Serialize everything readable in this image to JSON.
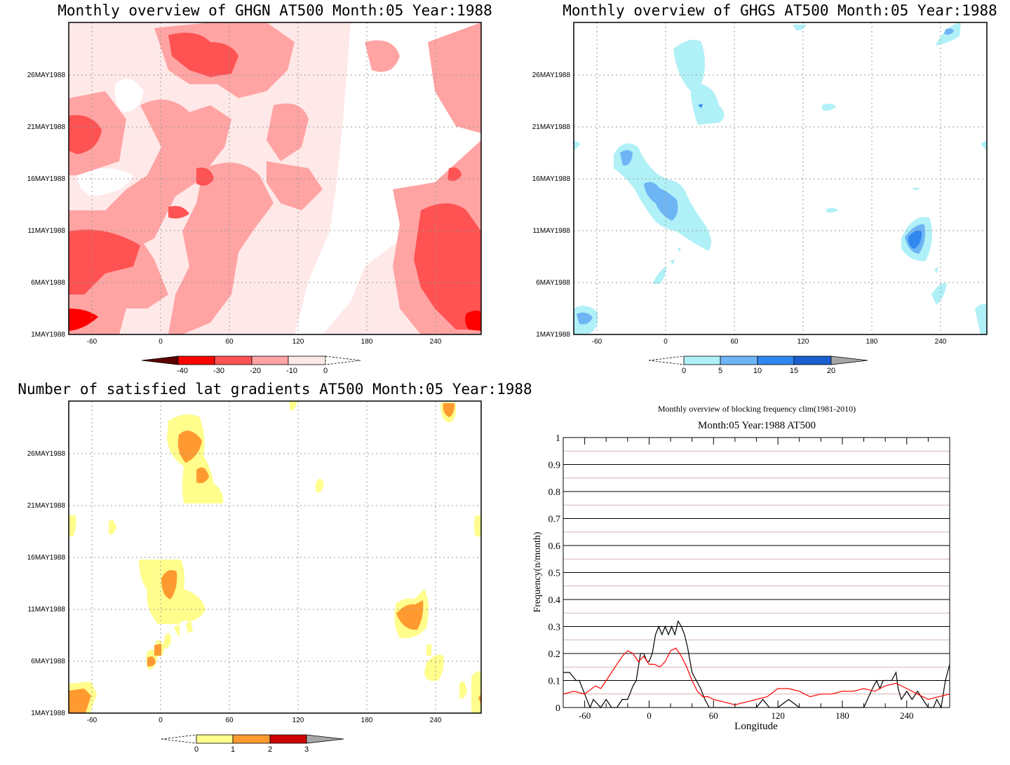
{
  "panels": {
    "ghgn": {
      "title": "Monthly overview of GHGN AT500 Month:05 Year:1988",
      "x_ticks": [
        "-60",
        "0",
        "60",
        "120",
        "180",
        "240"
      ],
      "y_ticks": [
        "1MAY1988",
        "6MAY1988",
        "11MAY1988",
        "16MAY1988",
        "21MAY1988",
        "26MAY1988"
      ],
      "colorbar_labels": [
        "-40",
        "-30",
        "-20",
        "-10",
        "0"
      ],
      "colors": [
        "#5c0000",
        "#ff0000",
        "#ff5252",
        "#ffa3a3",
        "#ffe8e8"
      ]
    },
    "ghgs": {
      "title": "Monthly overview of GHGS AT500 Month:05 Year:1988",
      "x_ticks": [
        "-60",
        "0",
        "60",
        "120",
        "180",
        "240"
      ],
      "y_ticks": [
        "1MAY1988",
        "6MAY1988",
        "11MAY1988",
        "16MAY1988",
        "21MAY1988",
        "26MAY1988"
      ],
      "colorbar_labels": [
        "0",
        "5",
        "10",
        "15",
        "20"
      ],
      "colors": [
        "#b0f0f7",
        "#6db5f5",
        "#2f87f0",
        "#1a5fd0",
        "#a6a6a6"
      ]
    },
    "satisfied": {
      "title": "Number of satisfied lat gradients AT500 Month:05 Year:1988",
      "x_ticks": [
        "-60",
        "0",
        "60",
        "120",
        "180",
        "240"
      ],
      "y_ticks": [
        "1MAY1988",
        "6MAY1988",
        "11MAY1988",
        "16MAY1988",
        "21MAY1988",
        "26MAY1988"
      ],
      "colorbar_labels": [
        "0",
        "1",
        "2",
        "3"
      ],
      "colors": [
        "#fffd8c",
        "#ff9a30",
        "#cc0000",
        "#a6a6a6"
      ]
    }
  },
  "chart_data": {
    "type": "line",
    "title": "Monthly overview of blocking frequency clim(1981-2010)",
    "subtitle": "Month:05 Year:1988  AT500",
    "xlabel": "Longitude",
    "ylabel": "Frequency(n/month)",
    "x_ticks": [
      "-60",
      "0",
      "60",
      "120",
      "180",
      "240"
    ],
    "y_ticks": [
      "0",
      "0.1",
      "0.2",
      "0.3",
      "0.4",
      "0.5",
      "0.6",
      "0.7",
      "0.8",
      "0.9",
      "1"
    ],
    "xlim": [
      -80,
      280
    ],
    "ylim": [
      0,
      1
    ],
    "grid": true,
    "series": [
      {
        "color": "#000000",
        "x": [
          -80,
          -74,
          -68,
          -65,
          -60,
          -55,
          -52,
          -45,
          -40,
          -35,
          -30,
          -25,
          -20,
          -15,
          -12,
          -8,
          -5,
          -2,
          0,
          3,
          6,
          9,
          12,
          15,
          18,
          21,
          24,
          27,
          30,
          33,
          36,
          40,
          44,
          48,
          52,
          56,
          60,
          65,
          70,
          75,
          80,
          90,
          100,
          106,
          112,
          120,
          130,
          140,
          150,
          160,
          170,
          180,
          190,
          200,
          208,
          212,
          215,
          218,
          222,
          226,
          230,
          232,
          235,
          240,
          245,
          250,
          255,
          260,
          265,
          268,
          272,
          276,
          280
        ],
        "y": [
          0.13,
          0.13,
          0.1,
          0.1,
          0.05,
          0.0,
          0.03,
          0.0,
          0.03,
          0.0,
          0.0,
          0.03,
          0.03,
          0.08,
          0.1,
          0.2,
          0.2,
          0.17,
          0.17,
          0.2,
          0.27,
          0.3,
          0.27,
          0.3,
          0.27,
          0.3,
          0.27,
          0.32,
          0.3,
          0.27,
          0.22,
          0.13,
          0.1,
          0.07,
          0.03,
          0.0,
          0.0,
          0.0,
          0.0,
          0.0,
          0.0,
          0.0,
          0.0,
          0.03,
          0.0,
          0.0,
          0.03,
          0.0,
          0.0,
          0.0,
          0.0,
          0.0,
          0.0,
          0.0,
          0.07,
          0.1,
          0.07,
          0.1,
          0.1,
          0.1,
          0.13,
          0.07,
          0.03,
          0.06,
          0.03,
          0.06,
          0.03,
          0.0,
          0.0,
          0.03,
          0.0,
          0.1,
          0.16
        ]
      },
      {
        "color": "#ff0000",
        "x": [
          -80,
          -70,
          -60,
          -50,
          -45,
          -40,
          -35,
          -30,
          -25,
          -20,
          -15,
          -10,
          -5,
          0,
          5,
          10,
          15,
          20,
          25,
          30,
          35,
          40,
          45,
          50,
          55,
          60,
          70,
          80,
          90,
          100,
          110,
          120,
          130,
          140,
          150,
          160,
          170,
          180,
          190,
          200,
          210,
          220,
          230,
          240,
          250,
          260,
          270,
          280
        ],
        "y": [
          0.05,
          0.06,
          0.05,
          0.08,
          0.07,
          0.1,
          0.13,
          0.16,
          0.19,
          0.21,
          0.2,
          0.17,
          0.19,
          0.16,
          0.16,
          0.15,
          0.17,
          0.21,
          0.22,
          0.19,
          0.15,
          0.1,
          0.06,
          0.04,
          0.04,
          0.03,
          0.02,
          0.01,
          0.02,
          0.03,
          0.04,
          0.07,
          0.07,
          0.06,
          0.04,
          0.05,
          0.05,
          0.06,
          0.06,
          0.07,
          0.06,
          0.08,
          0.09,
          0.07,
          0.05,
          0.03,
          0.04,
          0.05
        ]
      }
    ]
  }
}
